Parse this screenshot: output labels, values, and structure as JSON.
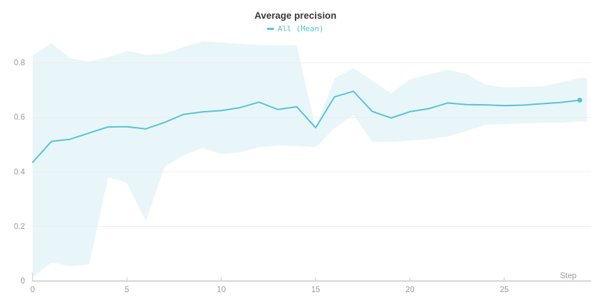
{
  "chart": {
    "title": "Average precision",
    "series_label": "All (Mean)",
    "xlabel": "Step"
  },
  "colors": {
    "line": "#54c2d8",
    "band": "#e9f6f9",
    "grid": "#ededed",
    "axis": "#d6d6d6",
    "tick": "#d9d9d9",
    "tick_text": "#999999",
    "title_text": "#363636"
  },
  "chart_data": {
    "type": "line",
    "title": "Average precision",
    "xlabel": "Step",
    "ylabel": "",
    "grid": true,
    "legend_position": "top-center",
    "xlim": [
      0,
      29.4
    ],
    "ylim": [
      0,
      0.89
    ],
    "x_ticks": [
      0,
      5,
      10,
      15,
      20,
      25
    ],
    "y_ticks": [
      0,
      0.2,
      0.4,
      0.6,
      0.8
    ],
    "series": [
      {
        "name": "All (Mean)",
        "x": [
          0,
          1,
          2,
          3,
          4,
          5,
          6,
          7,
          8,
          9,
          10,
          11,
          12,
          13,
          14,
          15,
          16,
          17,
          18,
          19,
          20,
          21,
          22,
          23,
          24,
          25,
          26,
          27,
          28,
          29
        ],
        "y": [
          0.435,
          0.512,
          0.52,
          0.543,
          0.565,
          0.566,
          0.558,
          0.582,
          0.611,
          0.62,
          0.625,
          0.636,
          0.656,
          0.629,
          0.639,
          0.562,
          0.675,
          0.696,
          0.622,
          0.598,
          0.621,
          0.632,
          0.653,
          0.647,
          0.646,
          0.643,
          0.645,
          0.65,
          0.655,
          0.663
        ],
        "band_upper": [
          0.827,
          0.872,
          0.816,
          0.805,
          0.82,
          0.844,
          0.83,
          0.834,
          0.858,
          0.879,
          0.875,
          0.87,
          0.866,
          0.865,
          0.865,
          0.561,
          0.743,
          0.781,
          0.735,
          0.688,
          0.74,
          0.758,
          0.775,
          0.76,
          0.72,
          0.71,
          0.712,
          0.714,
          0.728,
          0.745
        ],
        "band_lower": [
          0.012,
          0.068,
          0.054,
          0.06,
          0.38,
          0.36,
          0.218,
          0.42,
          0.46,
          0.488,
          0.465,
          0.472,
          0.49,
          0.497,
          0.495,
          0.49,
          0.56,
          0.61,
          0.51,
          0.51,
          0.515,
          0.52,
          0.53,
          0.55,
          0.573,
          0.575,
          0.578,
          0.58,
          0.58,
          0.585
        ],
        "last_point_marker": true
      }
    ]
  }
}
